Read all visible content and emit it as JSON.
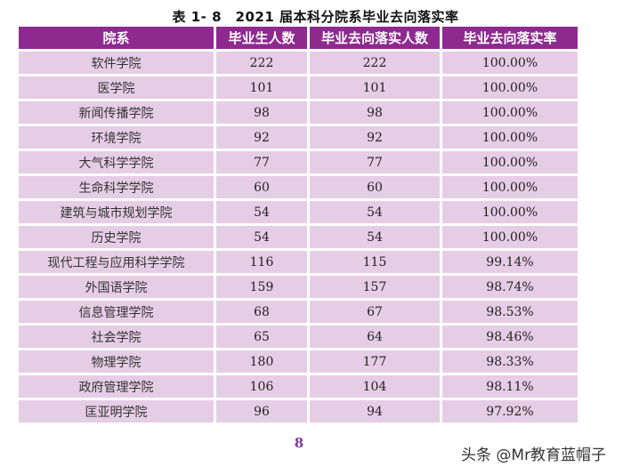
{
  "title": "表 1- 8　2021 届本科分院系毕业去向落实率",
  "headers": [
    "院系",
    "毕业生人数",
    "毕业去向落实人数",
    "毕业去向落实率"
  ],
  "rows": [
    {
      "dept": "软件学院",
      "graduates": "222",
      "placed": "222",
      "rate": "100.00%"
    },
    {
      "dept": "医学院",
      "graduates": "101",
      "placed": "101",
      "rate": "100.00%"
    },
    {
      "dept": "新闻传播学院",
      "graduates": "98",
      "placed": "98",
      "rate": "100.00%"
    },
    {
      "dept": "环境学院",
      "graduates": "92",
      "placed": "92",
      "rate": "100.00%"
    },
    {
      "dept": "大气科学学院",
      "graduates": "77",
      "placed": "77",
      "rate": "100.00%"
    },
    {
      "dept": "生命科学学院",
      "graduates": "60",
      "placed": "60",
      "rate": "100.00%"
    },
    {
      "dept": "建筑与城市规划学院",
      "graduates": "54",
      "placed": "54",
      "rate": "100.00%"
    },
    {
      "dept": "历史学院",
      "graduates": "54",
      "placed": "54",
      "rate": "100.00%"
    },
    {
      "dept": "现代工程与应用科学学院",
      "graduates": "116",
      "placed": "115",
      "rate": "99.14%"
    },
    {
      "dept": "外国语学院",
      "graduates": "159",
      "placed": "157",
      "rate": "98.74%"
    },
    {
      "dept": "信息管理学院",
      "graduates": "68",
      "placed": "67",
      "rate": "98.53%"
    },
    {
      "dept": "社会学院",
      "graduates": "65",
      "placed": "64",
      "rate": "98.46%"
    },
    {
      "dept": "物理学院",
      "graduates": "180",
      "placed": "177",
      "rate": "98.33%"
    },
    {
      "dept": "政府管理学院",
      "graduates": "106",
      "placed": "104",
      "rate": "98.11%"
    },
    {
      "dept": "匡亚明学院",
      "graduates": "96",
      "placed": "94",
      "rate": "97.92%"
    }
  ],
  "page_number": "8",
  "watermark": "头条 @Mr教育蓝帽子",
  "colors": {
    "header_bg": "#8e2a8f",
    "row_bg": "#e6cde6",
    "page_number": "#7b3b9e"
  }
}
